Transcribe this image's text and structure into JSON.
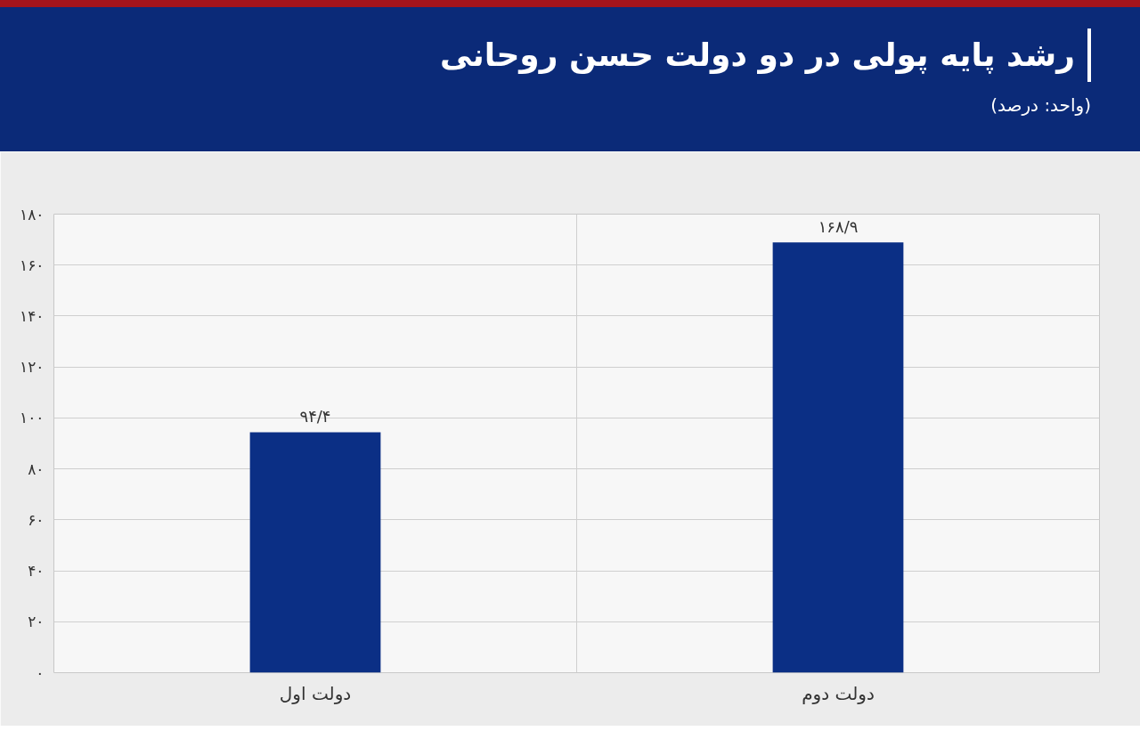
{
  "chart_data": {
    "type": "bar",
    "title": "رشد پایه پولی در دو دولت حسن روحانی",
    "subtitle": "(واحد: درصد)",
    "categories": [
      "دولت اول",
      "دولت دوم"
    ],
    "values": [
      94.4,
      168.9
    ],
    "value_labels": [
      "۹۴/۴",
      "۱۶۸/۹"
    ],
    "color": "#0b2f85",
    "ylim": [
      0,
      180
    ],
    "yticks": [
      {
        "value": 0,
        "label": "۰"
      },
      {
        "value": 20,
        "label": "۲۰"
      },
      {
        "value": 40,
        "label": "۴۰"
      },
      {
        "value": 60,
        "label": "۶۰"
      },
      {
        "value": 80,
        "label": "۸۰"
      },
      {
        "value": 100,
        "label": "۱۰۰"
      },
      {
        "value": 120,
        "label": "۱۲۰"
      },
      {
        "value": 140,
        "label": "۱۴۰"
      },
      {
        "value": 160,
        "label": "۱۶۰"
      },
      {
        "value": 180,
        "label": "۱۸۰"
      }
    ],
    "grid": true
  }
}
